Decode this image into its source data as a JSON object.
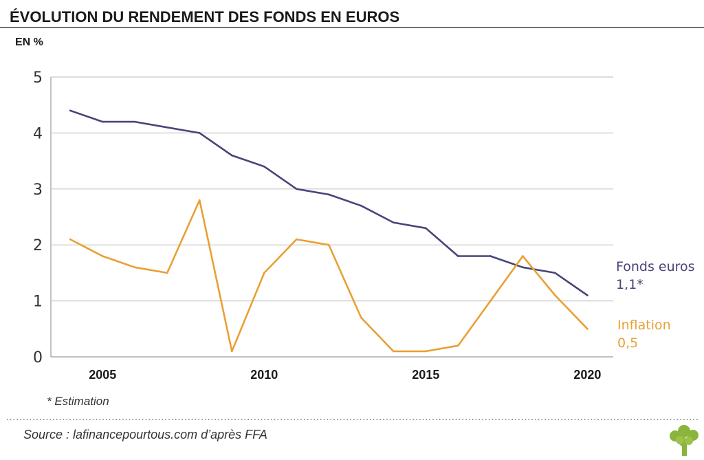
{
  "chart_data": {
    "type": "line",
    "title": "ÉVOLUTION DU RENDEMENT DES FONDS EN EUROS",
    "ylabel": "EN %",
    "xlabel": "",
    "x": [
      2004,
      2005,
      2006,
      2007,
      2008,
      2009,
      2010,
      2011,
      2012,
      2013,
      2014,
      2015,
      2016,
      2017,
      2018,
      2019,
      2020
    ],
    "xlim": [
      2003.4,
      2020.8
    ],
    "ylim": [
      0,
      5
    ],
    "yticks": [
      "0",
      "1",
      "2",
      "3",
      "4",
      "5"
    ],
    "xticks": [
      {
        "value": 2005,
        "label": "2005"
      },
      {
        "value": 2010,
        "label": "2010"
      },
      {
        "value": 2015,
        "label": "2015"
      },
      {
        "value": 2020,
        "label": "2020"
      }
    ],
    "grid": "horizontal",
    "series": [
      {
        "name": "Fonds euros",
        "end_label": "1,1*",
        "color": "#4a4478",
        "values": [
          4.4,
          4.2,
          4.2,
          4.1,
          4.0,
          3.6,
          3.4,
          3.0,
          2.9,
          2.7,
          2.4,
          2.3,
          1.8,
          1.8,
          1.6,
          1.5,
          1.1
        ]
      },
      {
        "name": "Inflation",
        "end_label": "0,5",
        "color": "#e8a033",
        "values": [
          2.1,
          1.8,
          1.6,
          1.5,
          2.8,
          0.1,
          1.5,
          2.1,
          2.0,
          0.7,
          0.1,
          0.1,
          0.2,
          1.0,
          1.8,
          1.1,
          0.5
        ]
      }
    ]
  },
  "footnote": "* Estimation",
  "source": "Source : lafinancepourtous.com d’après FFA",
  "logo": {
    "icon": "tree-icon",
    "color": "#8ab43c"
  }
}
